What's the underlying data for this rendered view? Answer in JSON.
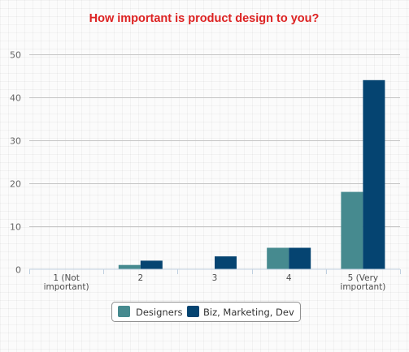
{
  "chart_data": {
    "type": "bar",
    "title": "How important is product design to you?",
    "categories": [
      [
        "1 (Not",
        "important)"
      ],
      [
        "2"
      ],
      [
        "3"
      ],
      [
        "4"
      ],
      [
        "5 (Very",
        "important)"
      ]
    ],
    "series": [
      {
        "name": "Designers",
        "values": [
          0,
          1,
          0,
          5,
          18
        ],
        "color": "#468a8f"
      },
      {
        "name": "Biz, Marketing, Dev",
        "values": [
          0,
          2,
          3,
          5,
          44
        ],
        "color": "#054471"
      }
    ],
    "yticks": [
      0,
      10,
      20,
      30,
      40,
      50
    ],
    "ylim": [
      0,
      50
    ],
    "grid": true,
    "legend": "bottom-center",
    "title_color": "#dd2222"
  }
}
